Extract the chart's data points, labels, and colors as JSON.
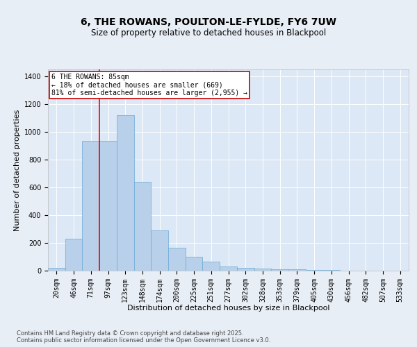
{
  "title": "6, THE ROWANS, POULTON-LE-FYLDE, FY6 7UW",
  "subtitle": "Size of property relative to detached houses in Blackpool",
  "xlabel": "Distribution of detached houses by size in Blackpool",
  "ylabel": "Number of detached properties",
  "footer": "Contains HM Land Registry data © Crown copyright and database right 2025.\nContains public sector information licensed under the Open Government Licence v3.0.",
  "categories": [
    "20sqm",
    "46sqm",
    "71sqm",
    "97sqm",
    "123sqm",
    "148sqm",
    "174sqm",
    "200sqm",
    "225sqm",
    "251sqm",
    "277sqm",
    "302sqm",
    "328sqm",
    "353sqm",
    "379sqm",
    "405sqm",
    "430sqm",
    "456sqm",
    "482sqm",
    "507sqm",
    "533sqm"
  ],
  "bar_values": [
    20,
    230,
    935,
    935,
    1120,
    640,
    290,
    165,
    100,
    65,
    30,
    20,
    15,
    10,
    8,
    5,
    3,
    2,
    1,
    1,
    1
  ],
  "bar_color": "#b8d0ea",
  "bar_edge_color": "#6aaad4",
  "red_line_x": 2.5,
  "annotation_text": "6 THE ROWANS: 85sqm\n← 18% of detached houses are smaller (669)\n81% of semi-detached houses are larger (2,955) →",
  "annotation_box_edge": "#cc0000",
  "ylim_max": 1450,
  "background_color": "#e8eef5",
  "plot_bg_color": "#dce8f5",
  "grid_color": "#ffffff",
  "title_fontsize": 10,
  "subtitle_fontsize": 8.5,
  "axis_label_fontsize": 8,
  "tick_fontsize": 7,
  "footer_fontsize": 6,
  "yticks": [
    0,
    200,
    400,
    600,
    800,
    1000,
    1200,
    1400
  ]
}
